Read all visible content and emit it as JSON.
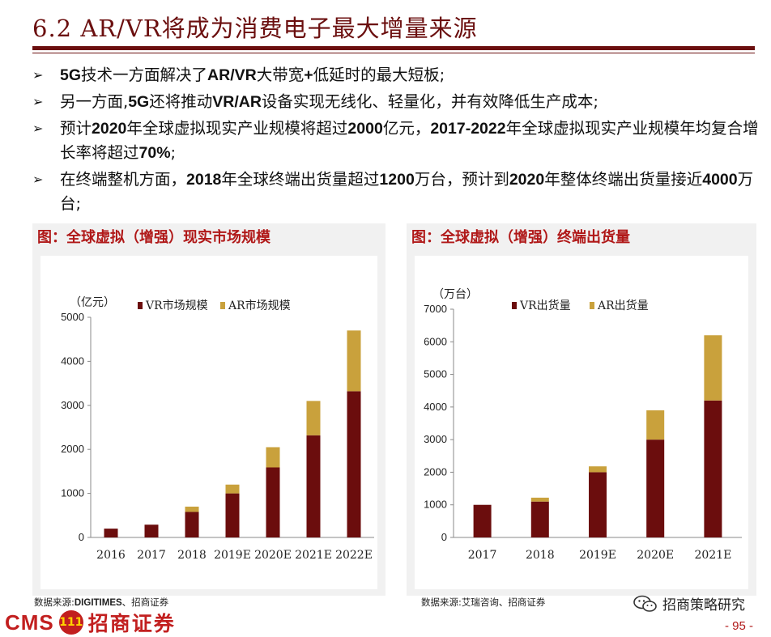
{
  "header": {
    "title": "6.2 AR/VR将成为消费电子最大增量来源"
  },
  "bullets": [
    {
      "parts": [
        "",
        "5G",
        "技术一方面解决了",
        "AR/VR",
        "大带宽",
        "+",
        "低延时的最大短板;"
      ]
    },
    {
      "parts": [
        "另一方面,",
        "5G",
        "还将推动",
        "VR/AR",
        "设备实现无线化、轻量化，并有效降低生产成本;"
      ]
    },
    {
      "parts": [
        "预计",
        "2020",
        "年全球虚拟现实产业规模将超过",
        "2000",
        "亿元，",
        "2017-2022",
        "年全球虚拟现实产业规模年均复合增长率将超过",
        "70%",
        ";"
      ]
    },
    {
      "parts": [
        "在终端整机方面，",
        "2018",
        "年全球终端出货量超过",
        "1200",
        "万台，预计到",
        "2020",
        "年整体终端出货量接近",
        "4000",
        "万台;"
      ]
    }
  ],
  "charts": {
    "left_title": "图：全球虚拟（增强）现实市场规模",
    "right_title": "图：全球虚拟（增强）终端出货量",
    "left_source_prefix": "数据来源:",
    "left_source_bold": "DIGITIMES",
    "left_source_suffix": "、招商证券",
    "right_source": "数据来源:艾瑞咨询、招商证券"
  },
  "chart_data": [
    {
      "type": "bar",
      "stacked": true,
      "title": "图：全球虚拟（增强）现实市场规模",
      "unit_label": "（亿元）",
      "categories": [
        "2016",
        "2017",
        "2018",
        "2019E",
        "2020E",
        "2021E",
        "2022E"
      ],
      "series": [
        {
          "name": "VR市场规模",
          "color": "#6b0d0d",
          "values": [
            200,
            290,
            580,
            1000,
            1590,
            2320,
            3320
          ]
        },
        {
          "name": "AR市场规模",
          "color": "#c9a13c",
          "values": [
            0,
            0,
            120,
            200,
            460,
            780,
            1380
          ]
        }
      ],
      "ylim": [
        0,
        5000
      ],
      "yticks": [
        0,
        1000,
        2000,
        3000,
        4000,
        5000
      ],
      "legend": "top"
    },
    {
      "type": "bar",
      "stacked": true,
      "title": "图：全球虚拟（增强）终端出货量",
      "unit_label": "（万台）",
      "categories": [
        "2017",
        "2018",
        "2019E",
        "2020E",
        "2021E"
      ],
      "series": [
        {
          "name": "VR出货量",
          "color": "#6b0d0d",
          "values": [
            1000,
            1100,
            2000,
            3000,
            4200
          ]
        },
        {
          "name": "AR出货量",
          "color": "#c9a13c",
          "values": [
            0,
            120,
            180,
            900,
            2000
          ]
        }
      ],
      "ylim": [
        0,
        7000
      ],
      "yticks": [
        0,
        1000,
        2000,
        3000,
        4000,
        5000,
        6000,
        7000
      ],
      "legend": "top"
    }
  ],
  "footer": {
    "logo_cms": "CMS",
    "logo_badge": "111",
    "logo_name": "招商证券",
    "wechat_label": "招商策略研究",
    "page_number": "- 95 -"
  }
}
